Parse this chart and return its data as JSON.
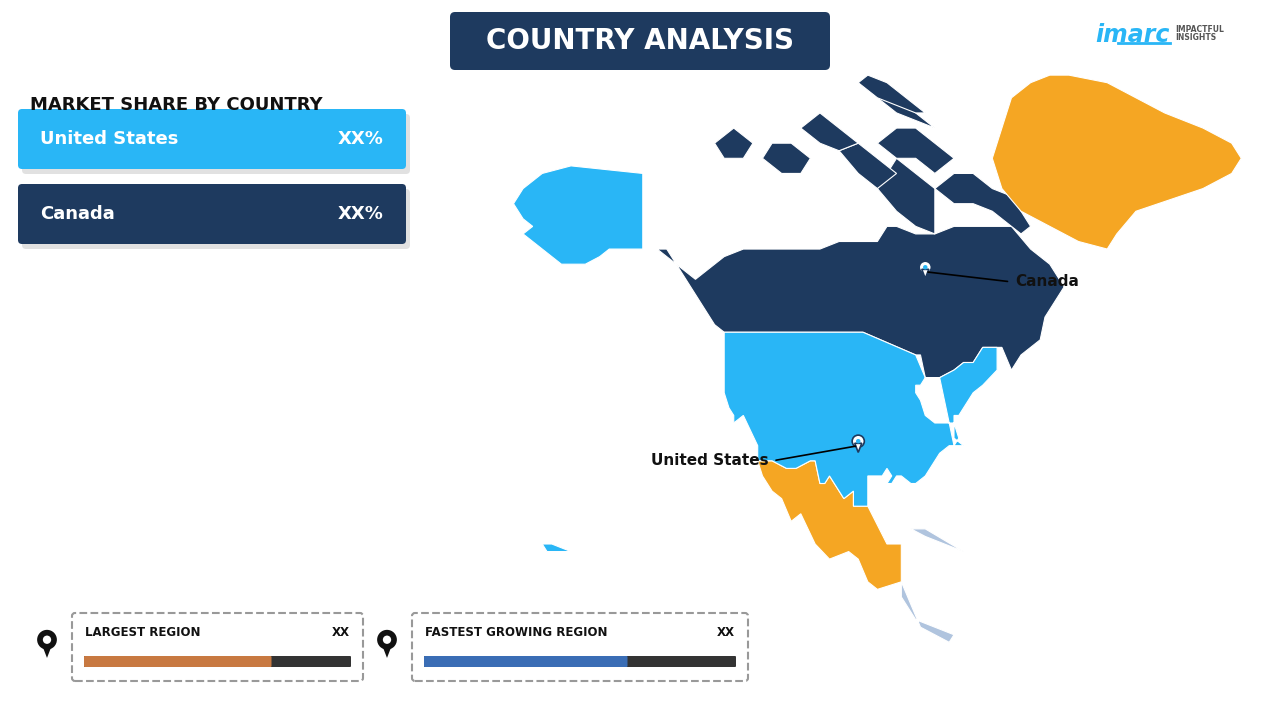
{
  "title": "COUNTRY ANALYSIS",
  "title_bg_color": "#1e3a5f",
  "title_text_color": "#ffffff",
  "subtitle": "MARKET SHARE BY COUNTRY",
  "subtitle_text_color": "#111111",
  "countries": [
    "United States",
    "Canada"
  ],
  "country_values": [
    "XX%",
    "XX%"
  ],
  "country_bar_colors": [
    "#29b6f6",
    "#1e3a5f"
  ],
  "country_text_color": "#ffffff",
  "map_us_color": "#29b6f6",
  "map_canada_color": "#1e3a5f",
  "map_mexico_color": "#f5a623",
  "map_greenland_color": "#f5a623",
  "map_other_color": "#b0c4de",
  "background_color": "#ffffff",
  "legend_largest_label": "LARGEST REGION",
  "legend_largest_value": "XX",
  "legend_largest_bar_color": "#c87941",
  "legend_fastest_label": "FASTEST GROWING REGION",
  "legend_fastest_value": "XX",
  "legend_fastest_bar_color": "#3a6db5",
  "pin_color": "#111111",
  "us_pin_label": "United States",
  "canada_pin_label": "Canada",
  "imarc_text_color": "#29b6f6",
  "imarc_sub_color": "#555555"
}
